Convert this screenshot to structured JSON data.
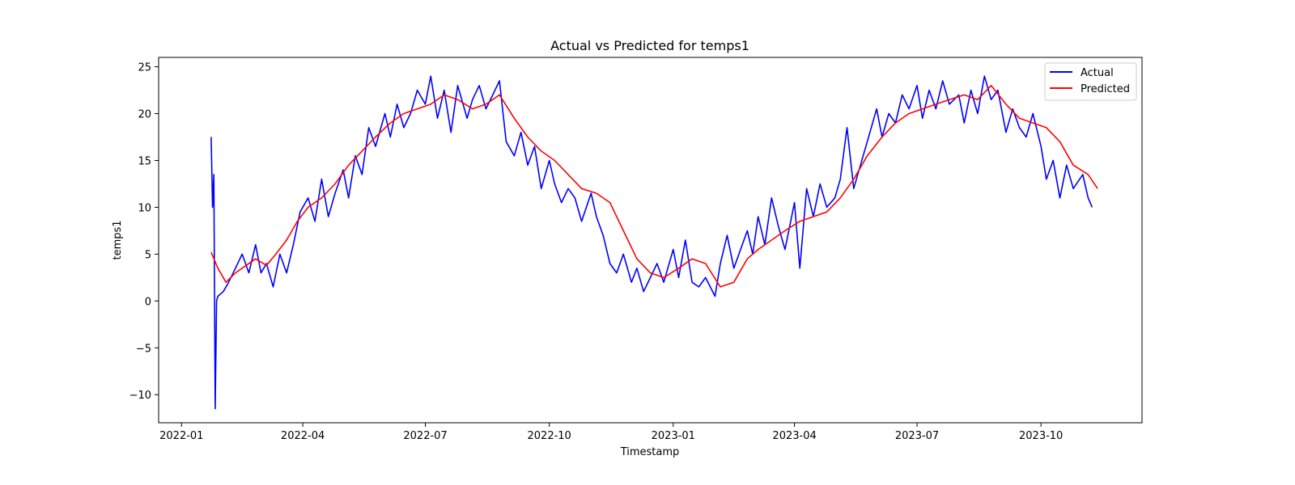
{
  "chart_data": {
    "type": "line",
    "title": "Actual vs Predicted for temps1",
    "xlabel": "Timestamp",
    "ylabel": "temps1",
    "x_ticks": [
      "2022-01",
      "2022-04",
      "2022-07",
      "2022-10",
      "2023-01",
      "2023-04",
      "2023-07",
      "2023-10"
    ],
    "y_ticks": [
      "25",
      "20",
      "15",
      "10",
      "5",
      "0",
      "−5",
      "−10"
    ],
    "xlim": [
      "2021-12-15",
      "2023-12-15"
    ],
    "ylim": [
      -13,
      26
    ],
    "grid": false,
    "legend_position": "top-right",
    "series": [
      {
        "name": "Actual",
        "color": "#0000ff",
        "x": [
          "2022-01-23",
          "2022-01-24",
          "2022-01-25",
          "2022-01-26",
          "2022-01-27",
          "2022-01-28",
          "2022-02-01",
          "2022-02-05",
          "2022-02-10",
          "2022-02-15",
          "2022-02-20",
          "2022-02-25",
          "2022-03-01",
          "2022-03-05",
          "2022-03-10",
          "2022-03-15",
          "2022-03-20",
          "2022-03-25",
          "2022-03-30",
          "2022-04-05",
          "2022-04-10",
          "2022-04-15",
          "2022-04-20",
          "2022-04-25",
          "2022-05-01",
          "2022-05-05",
          "2022-05-10",
          "2022-05-15",
          "2022-05-20",
          "2022-05-25",
          "2022-06-01",
          "2022-06-05",
          "2022-06-10",
          "2022-06-15",
          "2022-06-20",
          "2022-06-25",
          "2022-07-01",
          "2022-07-05",
          "2022-07-10",
          "2022-07-15",
          "2022-07-20",
          "2022-07-25",
          "2022-08-01",
          "2022-08-05",
          "2022-08-10",
          "2022-08-15",
          "2022-08-20",
          "2022-08-25",
          "2022-08-30",
          "2022-09-05",
          "2022-09-10",
          "2022-09-15",
          "2022-09-20",
          "2022-09-25",
          "2022-10-01",
          "2022-10-05",
          "2022-10-10",
          "2022-10-15",
          "2022-10-20",
          "2022-10-25",
          "2022-11-01",
          "2022-11-05",
          "2022-11-10",
          "2022-11-15",
          "2022-11-20",
          "2022-11-25",
          "2022-12-01",
          "2022-12-05",
          "2022-12-10",
          "2022-12-15",
          "2022-12-20",
          "2022-12-25",
          "2023-01-01",
          "2023-01-05",
          "2023-01-10",
          "2023-01-15",
          "2023-01-20",
          "2023-01-25",
          "2023-02-01",
          "2023-02-05",
          "2023-02-10",
          "2023-02-15",
          "2023-02-20",
          "2023-02-25",
          "2023-03-01",
          "2023-03-05",
          "2023-03-10",
          "2023-03-15",
          "2023-03-20",
          "2023-03-25",
          "2023-04-01",
          "2023-04-05",
          "2023-04-10",
          "2023-04-15",
          "2023-04-20",
          "2023-04-25",
          "2023-05-01",
          "2023-05-05",
          "2023-05-10",
          "2023-05-15",
          "2023-05-20",
          "2023-05-25",
          "2023-06-01",
          "2023-06-05",
          "2023-06-10",
          "2023-06-15",
          "2023-06-20",
          "2023-06-25",
          "2023-07-01",
          "2023-07-05",
          "2023-07-10",
          "2023-07-15",
          "2023-07-20",
          "2023-07-25",
          "2023-08-01",
          "2023-08-05",
          "2023-08-10",
          "2023-08-15",
          "2023-08-20",
          "2023-08-25",
          "2023-08-30",
          "2023-09-05",
          "2023-09-10",
          "2023-09-15",
          "2023-09-20",
          "2023-09-25",
          "2023-10-01",
          "2023-10-05",
          "2023-10-10",
          "2023-10-15",
          "2023-10-20",
          "2023-10-25",
          "2023-11-01",
          "2023-11-05",
          "2023-11-08"
        ],
        "values": [
          17.5,
          10.0,
          13.5,
          -11.5,
          0.0,
          0.5,
          1.0,
          2.0,
          3.5,
          5.0,
          3.0,
          6.0,
          3.0,
          4.0,
          1.5,
          5.0,
          3.0,
          6.0,
          9.5,
          11.0,
          8.5,
          13.0,
          9.0,
          11.5,
          14.0,
          11.0,
          15.5,
          13.5,
          18.5,
          16.5,
          20.0,
          17.5,
          21.0,
          18.5,
          20.0,
          22.5,
          21.0,
          24.0,
          19.5,
          22.5,
          18.0,
          23.0,
          19.5,
          21.5,
          23.0,
          20.5,
          22.0,
          23.5,
          17.0,
          15.5,
          18.0,
          14.5,
          16.5,
          12.0,
          15.0,
          12.5,
          10.5,
          12.0,
          11.0,
          8.5,
          11.5,
          9.0,
          7.0,
          4.0,
          3.0,
          5.0,
          2.0,
          3.5,
          1.0,
          2.5,
          4.0,
          2.0,
          5.5,
          2.5,
          6.5,
          2.0,
          1.5,
          2.5,
          0.5,
          4.0,
          7.0,
          3.5,
          5.5,
          7.5,
          5.0,
          9.0,
          6.0,
          11.0,
          8.0,
          5.5,
          10.5,
          3.5,
          12.0,
          9.0,
          12.5,
          10.0,
          11.0,
          13.0,
          18.5,
          12.0,
          14.5,
          17.0,
          20.5,
          17.5,
          20.0,
          19.0,
          22.0,
          20.5,
          23.0,
          19.5,
          22.5,
          20.5,
          23.5,
          21.0,
          22.0,
          19.0,
          22.5,
          20.0,
          24.0,
          21.5,
          22.5,
          18.0,
          20.5,
          18.5,
          17.5,
          20.0,
          16.5,
          13.0,
          15.0,
          11.0,
          14.5,
          12.0,
          13.5,
          11.0,
          10.0
        ]
      },
      {
        "name": "Predicted",
        "color": "#ff0000",
        "x": [
          "2022-01-23",
          "2022-01-28",
          "2022-02-03",
          "2022-02-10",
          "2022-02-18",
          "2022-02-25",
          "2022-03-05",
          "2022-03-12",
          "2022-03-20",
          "2022-03-28",
          "2022-04-05",
          "2022-04-15",
          "2022-04-25",
          "2022-05-05",
          "2022-05-15",
          "2022-05-25",
          "2022-06-05",
          "2022-06-15",
          "2022-06-25",
          "2022-07-05",
          "2022-07-15",
          "2022-07-25",
          "2022-08-05",
          "2022-08-15",
          "2022-08-25",
          "2022-09-05",
          "2022-09-15",
          "2022-09-25",
          "2022-10-05",
          "2022-10-15",
          "2022-10-25",
          "2022-11-05",
          "2022-11-15",
          "2022-11-25",
          "2022-12-05",
          "2022-12-15",
          "2022-12-25",
          "2023-01-05",
          "2023-01-15",
          "2023-01-25",
          "2023-02-05",
          "2023-02-15",
          "2023-02-25",
          "2023-03-05",
          "2023-03-15",
          "2023-03-25",
          "2023-04-05",
          "2023-04-15",
          "2023-04-25",
          "2023-05-05",
          "2023-05-15",
          "2023-05-25",
          "2023-06-05",
          "2023-06-15",
          "2023-06-25",
          "2023-07-05",
          "2023-07-15",
          "2023-07-25",
          "2023-08-05",
          "2023-08-15",
          "2023-08-25",
          "2023-09-05",
          "2023-09-15",
          "2023-09-25",
          "2023-10-05",
          "2023-10-15",
          "2023-10-25",
          "2023-11-05",
          "2023-11-12"
        ],
        "values": [
          5.2,
          3.5,
          2.0,
          3.0,
          3.8,
          4.5,
          3.8,
          5.0,
          6.5,
          8.5,
          10.0,
          11.0,
          12.5,
          14.5,
          16.0,
          17.5,
          19.0,
          20.0,
          20.5,
          21.0,
          22.0,
          21.5,
          20.5,
          21.0,
          22.0,
          19.5,
          17.5,
          16.0,
          15.0,
          13.5,
          12.0,
          11.5,
          10.5,
          7.5,
          4.5,
          3.0,
          2.5,
          3.5,
          4.5,
          4.0,
          1.5,
          2.0,
          4.5,
          5.5,
          6.5,
          7.5,
          8.5,
          9.0,
          9.5,
          11.0,
          13.0,
          15.5,
          17.5,
          19.0,
          20.0,
          20.5,
          21.0,
          21.5,
          22.0,
          21.5,
          23.0,
          21.0,
          19.5,
          19.0,
          18.5,
          17.0,
          14.5,
          13.5,
          12.0
        ]
      }
    ]
  }
}
